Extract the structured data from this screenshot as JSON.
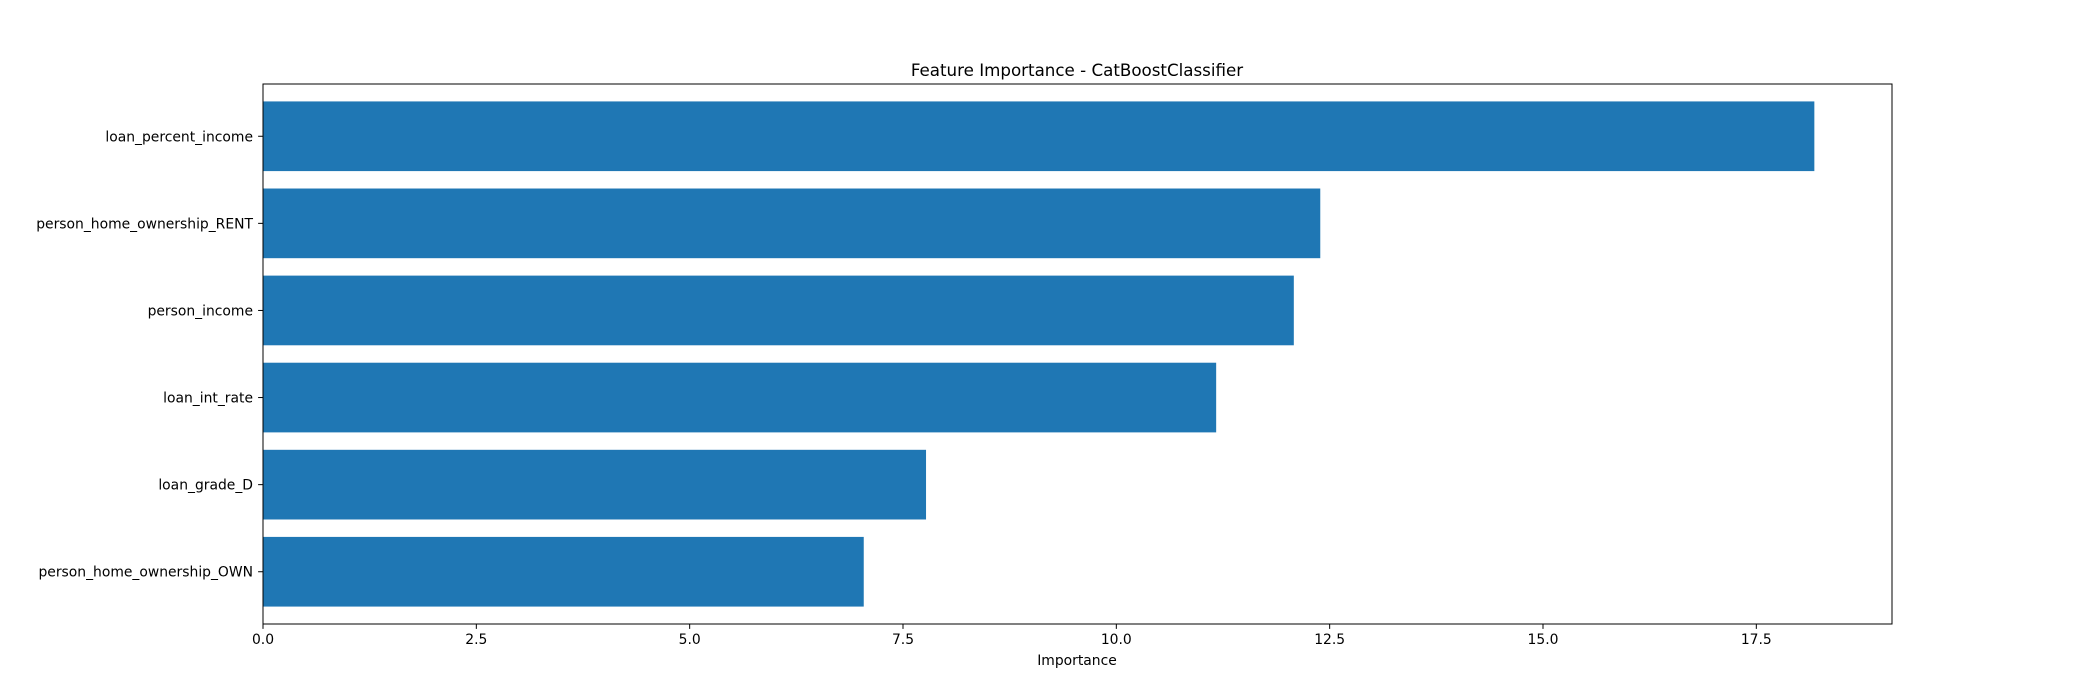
{
  "chart_data": {
    "type": "bar",
    "orientation": "horizontal",
    "title": "Feature Importance - CatBoostClassifier",
    "xlabel": "Importance",
    "ylabel": "",
    "categories": [
      "loan_percent_income",
      "person_home_ownership_RENT",
      "person_income",
      "loan_int_rate",
      "loan_grade_D",
      "person_home_ownership_OWN"
    ],
    "values": [
      18.18,
      12.39,
      12.08,
      11.17,
      7.77,
      7.04
    ],
    "xlim": [
      0,
      19.09
    ],
    "xticks": [
      0.0,
      2.5,
      5.0,
      7.5,
      10.0,
      12.5,
      15.0,
      17.5
    ],
    "xtick_labels": [
      "0.0",
      "2.5",
      "5.0",
      "7.5",
      "10.0",
      "12.5",
      "15.0",
      "17.5"
    ],
    "bar_color": "#1f77b4",
    "grid": false,
    "legend": "none"
  }
}
